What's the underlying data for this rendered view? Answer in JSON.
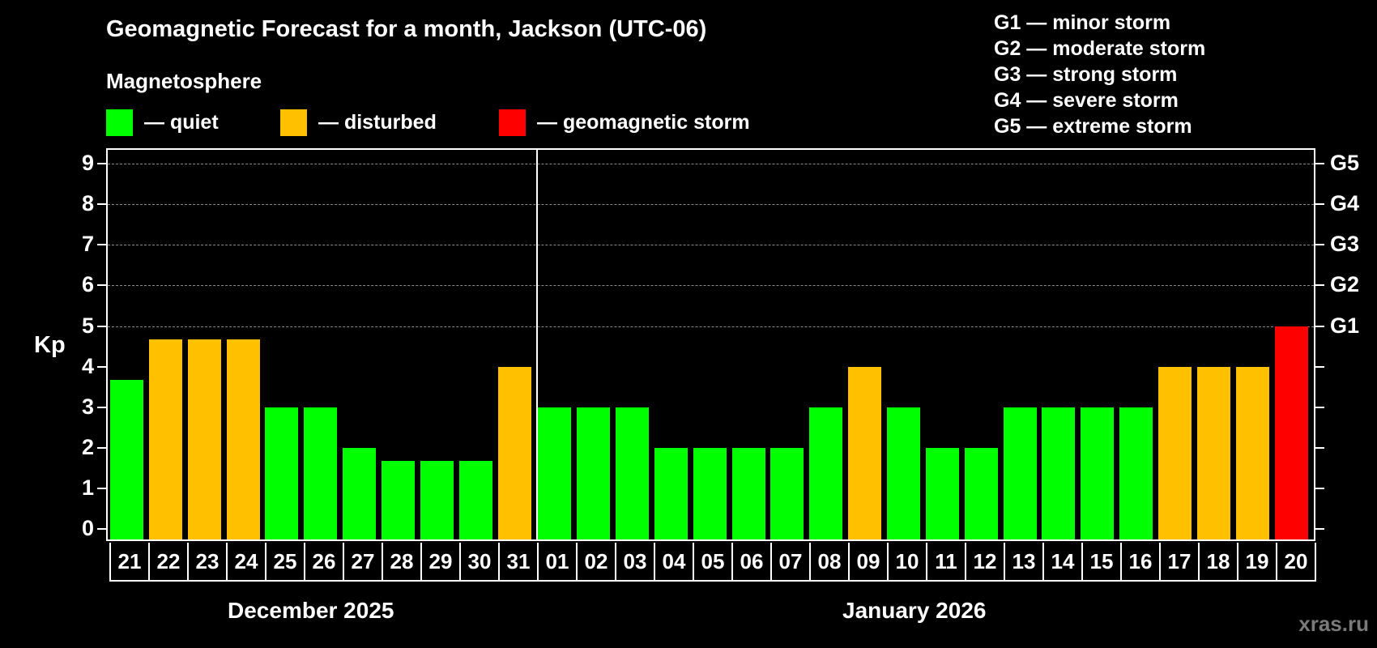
{
  "header": {
    "title": "Geomagnetic Forecast for a month, Jackson (UTC-06)",
    "subtitle": "Magnetosphere"
  },
  "legend": {
    "items": [
      {
        "label": "— quiet",
        "color": "#00ff00"
      },
      {
        "label": "— disturbed",
        "color": "#ffc000"
      },
      {
        "label": "— geomagnetic storm",
        "color": "#ff0000"
      }
    ]
  },
  "storm_scale": [
    "G1 — minor storm",
    "G2 — moderate storm",
    "G3 — strong storm",
    "G4 — severe storm",
    "G5 — extreme storm"
  ],
  "axes": {
    "y_label": "Kp",
    "y_ticks": [
      "0",
      "1",
      "2",
      "3",
      "4",
      "5",
      "6",
      "7",
      "8",
      "9"
    ],
    "g_ticks": [
      "G1",
      "G2",
      "G3",
      "G4",
      "G5"
    ]
  },
  "months": {
    "left": "December 2025",
    "right": "January 2026"
  },
  "watermark": "xras.ru",
  "chart_data": {
    "type": "bar",
    "title": "Geomagnetic Forecast for a month, Jackson (UTC-06)",
    "xlabel": "",
    "ylabel": "Kp",
    "ylim": [
      0,
      9
    ],
    "grid": true,
    "categories": [
      "21",
      "22",
      "23",
      "24",
      "25",
      "26",
      "27",
      "28",
      "29",
      "30",
      "31",
      "01",
      "02",
      "03",
      "04",
      "05",
      "06",
      "07",
      "08",
      "09",
      "10",
      "11",
      "12",
      "13",
      "14",
      "15",
      "16",
      "17",
      "18",
      "19",
      "20"
    ],
    "values": [
      3.67,
      4.67,
      4.67,
      4.67,
      3,
      3,
      2,
      1.67,
      1.67,
      1.67,
      4,
      3,
      3,
      3,
      2,
      2,
      2,
      2,
      3,
      4,
      3,
      2,
      2,
      3,
      3,
      3,
      3,
      4,
      4,
      4,
      5
    ],
    "levels": [
      "quiet",
      "disturbed",
      "disturbed",
      "disturbed",
      "quiet",
      "quiet",
      "quiet",
      "quiet",
      "quiet",
      "quiet",
      "disturbed",
      "quiet",
      "quiet",
      "quiet",
      "quiet",
      "quiet",
      "quiet",
      "quiet",
      "quiet",
      "disturbed",
      "quiet",
      "quiet",
      "quiet",
      "quiet",
      "quiet",
      "quiet",
      "quiet",
      "disturbed",
      "disturbed",
      "disturbed",
      "storm"
    ],
    "colors": {
      "quiet": "#00ff00",
      "disturbed": "#ffc000",
      "storm": "#ff0000"
    },
    "month_groups": [
      {
        "label": "December 2025",
        "start": "21",
        "end": "31"
      },
      {
        "label": "January 2026",
        "start": "01",
        "end": "20"
      }
    ],
    "right_axis": {
      "labels": [
        "G1",
        "G2",
        "G3",
        "G4",
        "G5"
      ],
      "kp_values": [
        5,
        6,
        7,
        8,
        9
      ]
    },
    "legend": [
      "quiet",
      "disturbed",
      "geomagnetic storm"
    ]
  }
}
